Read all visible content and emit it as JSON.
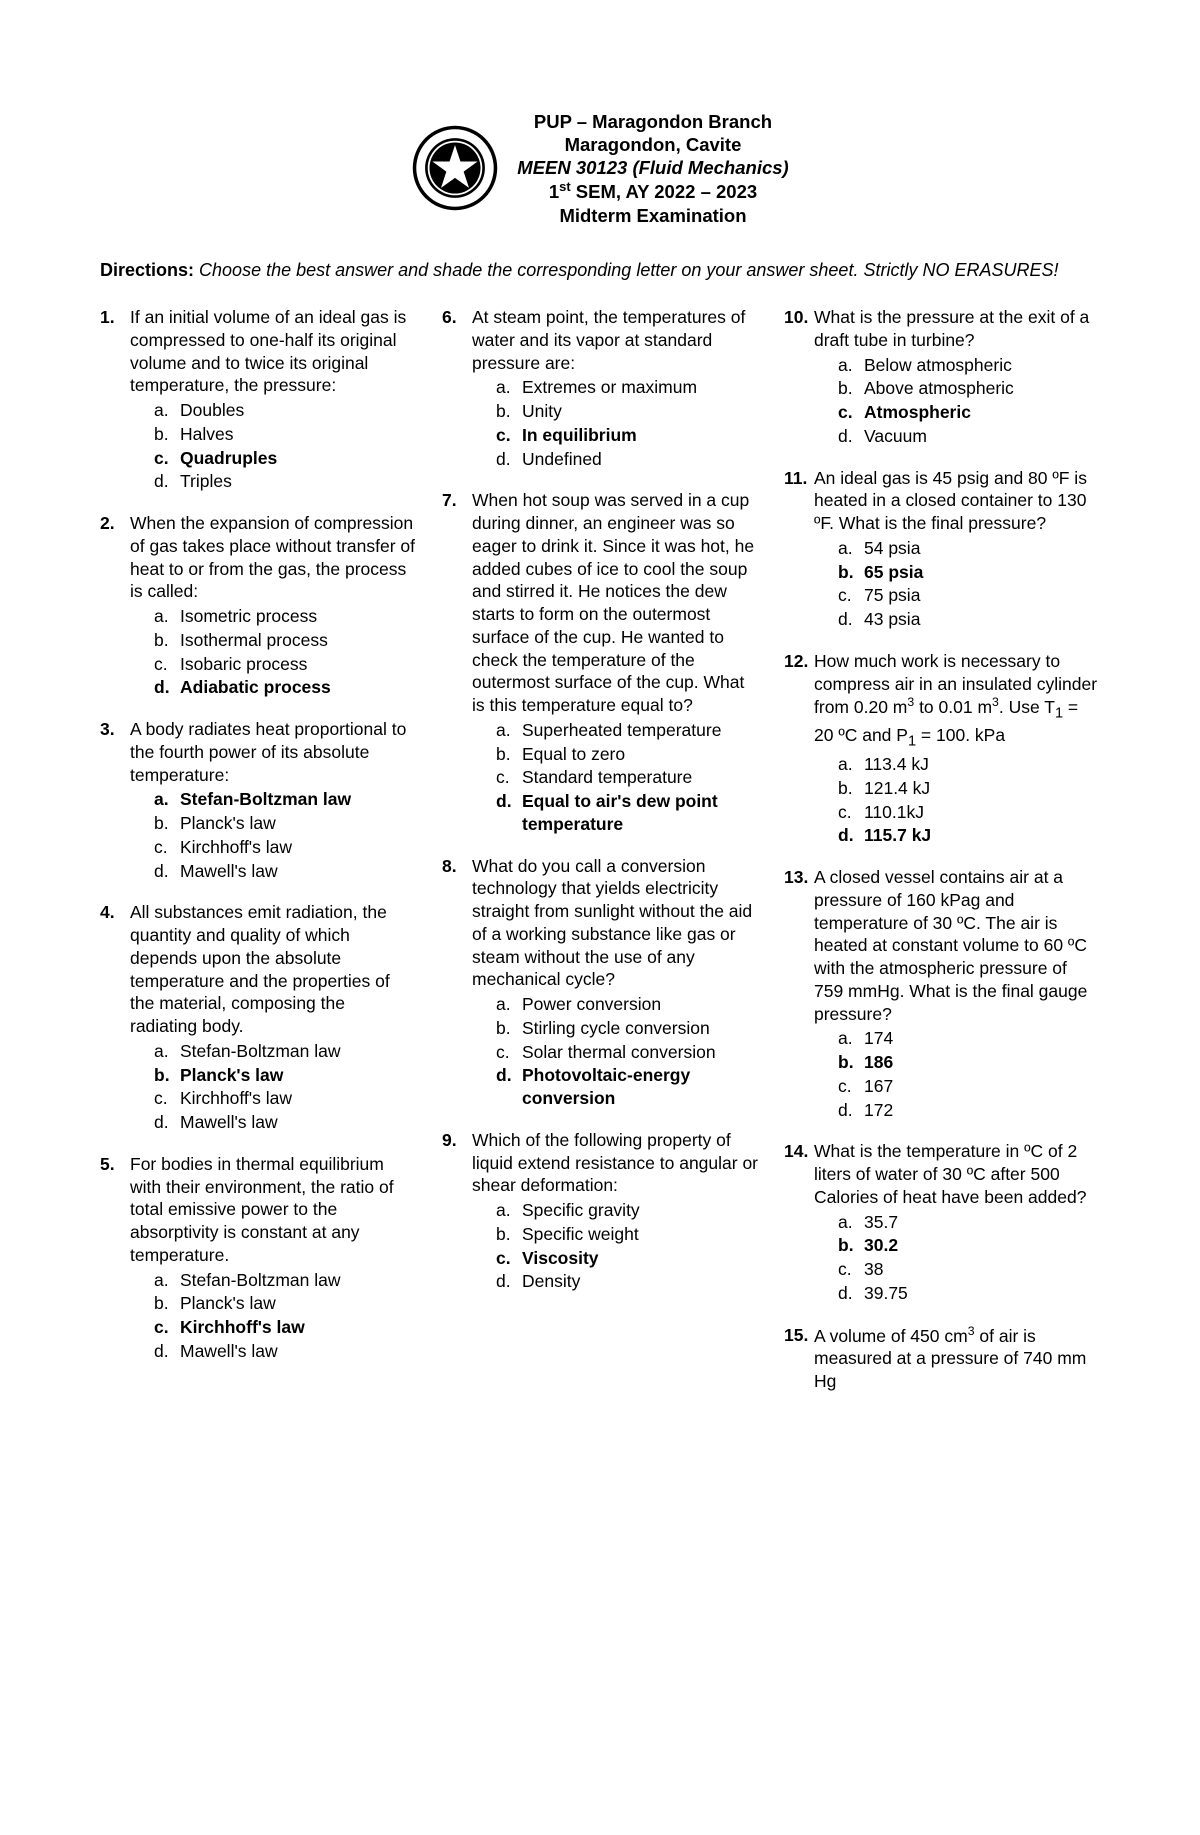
{
  "header": {
    "line1": "PUP – Maragondon Branch",
    "line2": "Maragondon, Cavite",
    "line3": "MEEN 30123 (Fluid Mechanics)",
    "line4_pre": "1",
    "line4_sup": "st",
    "line4_post": " SEM, AY 2022 – 2023",
    "line5": "Midterm Examination"
  },
  "directions": {
    "label": "Directions:",
    "body": " Choose the best answer and shade the corresponding letter on your answer sheet. Strictly NO ERASURES!"
  },
  "questions": [
    {
      "num": "1.",
      "stem": "If an initial volume of an ideal gas is compressed to one-half its original volume and to twice its original temperature, the pressure:",
      "opts": [
        {
          "l": "a.",
          "t": "Doubles",
          "b": false
        },
        {
          "l": "b.",
          "t": "Halves",
          "b": false
        },
        {
          "l": "c.",
          "t": "Quadruples",
          "b": true
        },
        {
          "l": "d.",
          "t": "Triples",
          "b": false
        }
      ]
    },
    {
      "num": "2.",
      "stem": "When the expansion of compression of gas takes place without transfer of heat to or from the gas, the process is called:",
      "opts": [
        {
          "l": "a.",
          "t": "Isometric process",
          "b": false
        },
        {
          "l": "b.",
          "t": "Isothermal process",
          "b": false
        },
        {
          "l": "c.",
          "t": "Isobaric process",
          "b": false
        },
        {
          "l": "d.",
          "t": "Adiabatic process",
          "b": true
        }
      ]
    },
    {
      "num": "3.",
      "stem": "A body radiates heat proportional to the fourth power of its absolute temperature:",
      "opts": [
        {
          "l": "a.",
          "t": "Stefan-Boltzman law",
          "b": true
        },
        {
          "l": "b.",
          "t": "Planck's law",
          "b": false
        },
        {
          "l": "c.",
          "t": "Kirchhoff's law",
          "b": false
        },
        {
          "l": "d.",
          "t": "Mawell's law",
          "b": false
        }
      ]
    },
    {
      "num": "4.",
      "stem": "All substances emit radiation, the quantity and quality of which depends upon the absolute temperature and the properties of the material, composing the radiating body.",
      "opts": [
        {
          "l": "a.",
          "t": "Stefan-Boltzman law",
          "b": false
        },
        {
          "l": "b.",
          "t": "Planck's law",
          "b": true
        },
        {
          "l": "c.",
          "t": "Kirchhoff's law",
          "b": false
        },
        {
          "l": "d.",
          "t": "Mawell's law",
          "b": false
        }
      ]
    },
    {
      "num": "5.",
      "stem": "For bodies in thermal equilibrium with their environment, the ratio of total emissive power to the absorptivity is constant at any temperature.",
      "opts": [
        {
          "l": "a.",
          "t": "Stefan-Boltzman law",
          "b": false
        },
        {
          "l": "b.",
          "t": "Planck's law",
          "b": false
        },
        {
          "l": "c.",
          "t": "Kirchhoff's law",
          "b": true
        },
        {
          "l": "d.",
          "t": "Mawell's law",
          "b": false
        }
      ]
    },
    {
      "num": "6.",
      "stem": "At steam point, the temperatures of water and its vapor at standard pressure are:",
      "opts": [
        {
          "l": "a.",
          "t": "Extremes or maximum",
          "b": false
        },
        {
          "l": "b.",
          "t": "Unity",
          "b": false
        },
        {
          "l": "c.",
          "t": "In equilibrium",
          "b": true
        },
        {
          "l": "d.",
          "t": "Undefined",
          "b": false
        }
      ]
    },
    {
      "num": "7.",
      "stem": "When hot soup was served in a cup during dinner, an engineer was so eager to drink it. Since it was hot, he added cubes of ice to cool the soup and stirred it. He notices the dew starts to form on the outermost surface of the cup. He wanted to check the temperature of the outermost surface of the cup. What is this temperature equal to?",
      "opts": [
        {
          "l": "a.",
          "t": "Superheated temperature",
          "b": false
        },
        {
          "l": "b.",
          "t": "Equal to zero",
          "b": false
        },
        {
          "l": "c.",
          "t": "Standard temperature",
          "b": false
        },
        {
          "l": "d.",
          "t": "Equal to air's dew point temperature",
          "b": true
        }
      ]
    },
    {
      "num": "8.",
      "stem": "What do you call a conversion technology that yields electricity straight from sunlight without the aid of a working substance like gas or steam without the use of any mechanical cycle?",
      "opts": [
        {
          "l": "a.",
          "t": "Power conversion",
          "b": false
        },
        {
          "l": "b.",
          "t": "Stirling cycle conversion",
          "b": false
        },
        {
          "l": "c.",
          "t": "Solar thermal conversion",
          "b": false
        },
        {
          "l": "d.",
          "t": "Photovoltaic-energy conversion",
          "b": true
        }
      ]
    },
    {
      "num": "9.",
      "stem": "Which of the following property of liquid extend resistance to angular or shear deformation:",
      "opts": [
        {
          "l": "a.",
          "t": "Specific gravity",
          "b": false
        },
        {
          "l": "b.",
          "t": "Specific weight",
          "b": false
        },
        {
          "l": "c.",
          "t": "Viscosity",
          "b": true
        },
        {
          "l": "d.",
          "t": "Density",
          "b": false
        }
      ]
    },
    {
      "num": "10.",
      "stem": "What is the pressure at the exit of a draft tube in turbine?",
      "opts": [
        {
          "l": "a.",
          "t": "Below atmospheric",
          "b": false
        },
        {
          "l": "b.",
          "t": "Above atmospheric",
          "b": false
        },
        {
          "l": "c.",
          "t": "Atmospheric",
          "b": true
        },
        {
          "l": "d.",
          "t": "Vacuum",
          "b": false
        }
      ]
    },
    {
      "num": "11.",
      "stem": "An ideal gas is 45 psig and 80 ºF is heated in a closed container to 130 ºF. What is the final pressure?",
      "opts": [
        {
          "l": "a.",
          "t": "54 psia",
          "b": false
        },
        {
          "l": "b.",
          "t": "65 psia",
          "b": true
        },
        {
          "l": "c.",
          "t": "75 psia",
          "b": false
        },
        {
          "l": "d.",
          "t": "43 psia",
          "b": false
        }
      ]
    },
    {
      "num": "12.",
      "stem_html": "How much work is necessary to compress air in an insulated cylinder from 0.20 m<sup>3</sup> to 0.01 m<sup>3</sup>. Use T<sub>1</sub> = 20 ºC and P<sub>1</sub> = 100. kPa",
      "opts": [
        {
          "l": "a.",
          "t": "113.4 kJ",
          "b": false
        },
        {
          "l": "b.",
          "t": "121.4 kJ",
          "b": false
        },
        {
          "l": "c.",
          "t": "110.1kJ",
          "b": false
        },
        {
          "l": "d.",
          "t": "115.7 kJ",
          "b": true
        }
      ]
    },
    {
      "num": "13.",
      "stem": "A closed vessel contains air at a pressure of 160 kPag and temperature of 30 ºC. The air is heated at constant volume to 60 ºC with the atmospheric pressure of 759 mmHg. What is the final gauge pressure?",
      "opts": [
        {
          "l": "a.",
          "t": "174",
          "b": false
        },
        {
          "l": "b.",
          "t": "186",
          "b": true
        },
        {
          "l": "c.",
          "t": "167",
          "b": false
        },
        {
          "l": "d.",
          "t": "172",
          "b": false
        }
      ]
    },
    {
      "num": "14.",
      "stem": "What is the temperature in ºC of 2 liters of water of 30 ºC after 500 Calories of heat have been added?",
      "opts": [
        {
          "l": "a.",
          "t": "35.7",
          "b": false
        },
        {
          "l": "b.",
          "t": "30.2",
          "b": true
        },
        {
          "l": "c.",
          "t": "38",
          "b": false
        },
        {
          "l": "d.",
          "t": "39.75",
          "b": false
        }
      ]
    },
    {
      "num": "15.",
      "stem_html": "A volume of 450 cm<sup>3</sup> of air is measured at a pressure of 740 mm Hg",
      "opts": []
    }
  ]
}
